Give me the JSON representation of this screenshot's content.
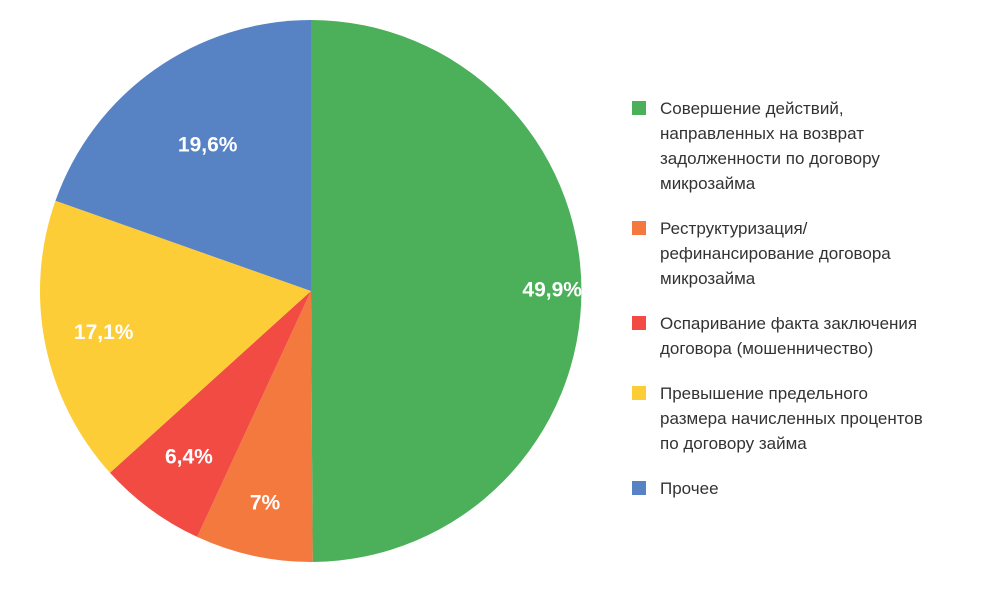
{
  "chart_data": {
    "type": "pie",
    "title": "",
    "start": "12 o'clock, clockwise",
    "slices": [
      {
        "name": "Совершение действий,\nнаправленных на возврат\nзадолженности по договору\nмикрозайма",
        "value": 49.9,
        "label": "49,9%",
        "color": "#4caf5a"
      },
      {
        "name": "Реструктуризация/\nрефинансирование договора\nмикрозайма",
        "value": 7.0,
        "label": "7%",
        "color": "#f4793e"
      },
      {
        "name": "Оспаривание факта заключения\nдоговора (мошенничество)",
        "value": 6.4,
        "label": "6,4%",
        "color": "#f24b44"
      },
      {
        "name": "Превышение предельного\nразмера начисленных процентов\nпо договору займа",
        "value": 17.1,
        "label": "17,1%",
        "color": "#fccd36"
      },
      {
        "name": "Прочее",
        "value": 19.6,
        "label": "19,6%",
        "color": "#5782c4"
      }
    ],
    "legend_position": "right"
  }
}
